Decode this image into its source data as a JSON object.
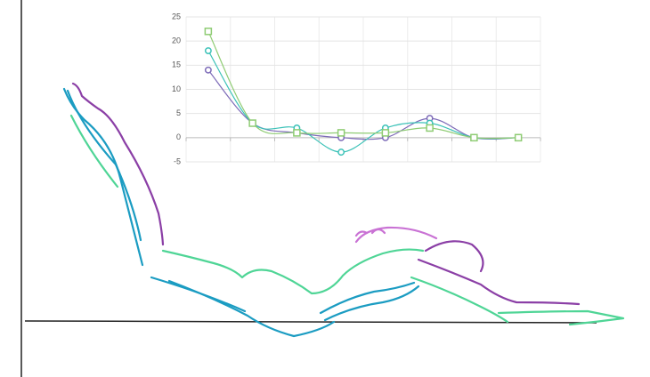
{
  "chart_data": {
    "type": "line",
    "categories": [
      null,
      null,
      null,
      null,
      null,
      null,
      null,
      null
    ],
    "series": [
      {
        "color": "#7d6bb8",
        "marker": "circle",
        "values": [
          14,
          3,
          1,
          0,
          0,
          4,
          0,
          0
        ]
      },
      {
        "color": "#3cc2b8",
        "marker": "circle",
        "values": [
          18,
          3,
          2,
          -3,
          2,
          3,
          0,
          0
        ]
      },
      {
        "color": "#8fcc74",
        "marker": "square",
        "values": [
          22,
          3,
          1,
          1,
          1,
          2,
          0,
          0
        ]
      }
    ],
    "ylim": [
      -5,
      25
    ],
    "yticks": [
      -5,
      0,
      5,
      10,
      15,
      20,
      25
    ],
    "grid": true
  }
}
